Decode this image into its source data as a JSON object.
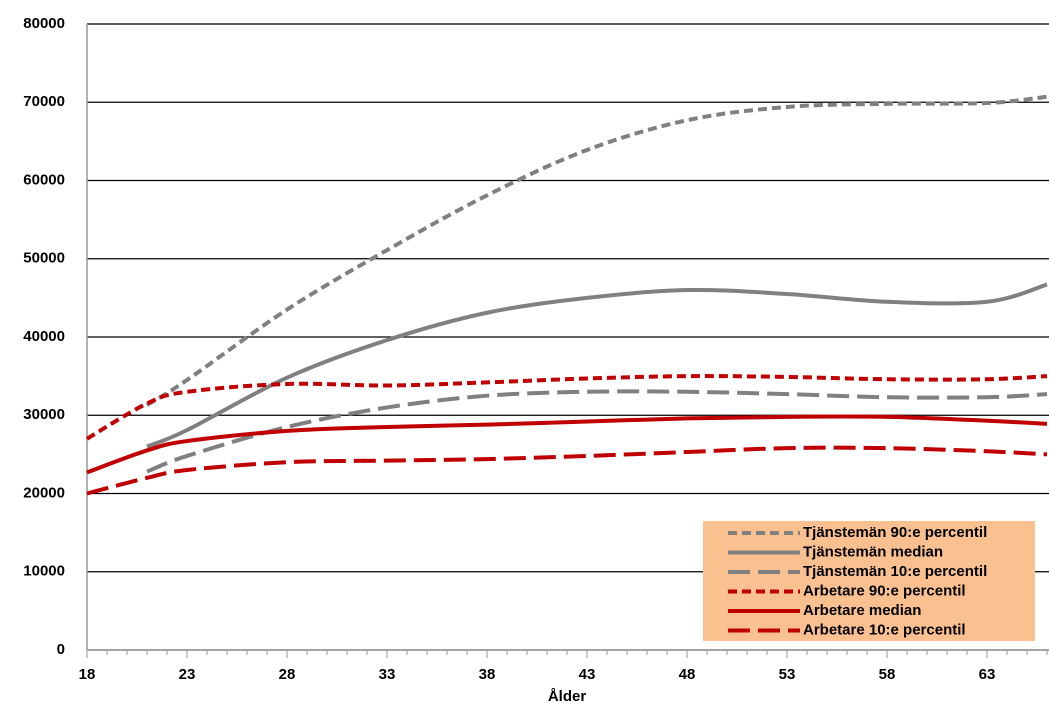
{
  "chart_data": {
    "type": "line",
    "x_label": "Ålder",
    "x": [
      18,
      21,
      23,
      28,
      33,
      38,
      43,
      48,
      53,
      58,
      63,
      66
    ],
    "xlim": [
      18,
      66
    ],
    "xticks": [
      18,
      23,
      28,
      33,
      38,
      43,
      48,
      53,
      58,
      63
    ],
    "ylim": [
      0,
      80000
    ],
    "yticks": [
      0,
      10000,
      20000,
      30000,
      40000,
      50000,
      60000,
      70000,
      80000
    ],
    "grid": true,
    "legend": "lower-right",
    "series": [
      {
        "name": "Tjänstemän 90:e percentil",
        "color": "#808080",
        "dash": "short-dash",
        "values": [
          null,
          31300,
          34500,
          43500,
          51100,
          58100,
          63900,
          67700,
          69400,
          69800,
          69900,
          70700
        ]
      },
      {
        "name": "Tjänstemän median",
        "color": "#808080",
        "dash": "solid",
        "values": [
          null,
          26000,
          28100,
          34800,
          39600,
          43100,
          45000,
          46000,
          45500,
          44500,
          44500,
          46700
        ]
      },
      {
        "name": "Tjänstemän 10:e percentil",
        "color": "#808080",
        "dash": "long-dash",
        "values": [
          null,
          22800,
          24800,
          28500,
          31000,
          32500,
          33000,
          33000,
          32700,
          32300,
          32300,
          32700
        ]
      },
      {
        "name": "Arbetare 90:e percentil",
        "color": "#c00000",
        "dash": "short-dash",
        "values": [
          27000,
          31500,
          33000,
          34000,
          33800,
          34200,
          34700,
          35000,
          34900,
          34600,
          34600,
          35000
        ]
      },
      {
        "name": "Arbetare median",
        "color": "#c00000",
        "dash": "solid",
        "values": [
          22700,
          25500,
          26700,
          28000,
          28500,
          28800,
          29200,
          29600,
          29800,
          29800,
          29300,
          28900
        ]
      },
      {
        "name": "Arbetare 10:e percentil",
        "color": "#c00000",
        "dash": "long-dash",
        "values": [
          20000,
          22000,
          23000,
          24000,
          24200,
          24400,
          24800,
          25300,
          25800,
          25800,
          25400,
          25000
        ]
      }
    ]
  }
}
